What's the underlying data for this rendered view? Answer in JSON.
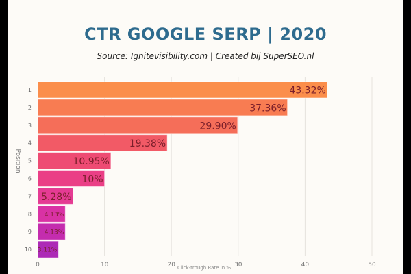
{
  "chart_data": {
    "type": "bar",
    "orientation": "horizontal",
    "title": "CTR GOOGLE SERP | 2020",
    "subtitle": "Source: Ignitevisibility.com  | Created bij SuperSEO.nl",
    "xlabel": "Click-trough Rate in %",
    "ylabel": "Position",
    "categories": [
      "1",
      "2",
      "3",
      "4",
      "5",
      "6",
      "7",
      "8",
      "9",
      "10"
    ],
    "values": [
      43.32,
      37.36,
      29.9,
      19.38,
      10.95,
      10,
      5.28,
      4.13,
      4.13,
      3.11
    ],
    "data_labels": [
      "43.32%",
      "37.36%",
      "29.90%",
      "19.38%",
      "10.95%",
      "10%",
      "5.28%",
      "4.13%",
      "4.13%",
      "3.11%"
    ],
    "xlim": [
      0,
      50
    ],
    "xticks": [
      "0",
      "10",
      "20",
      "30",
      "40",
      "50"
    ],
    "grid": true,
    "colors": [
      "#fb8e4b",
      "#f87c52",
      "#f56e59",
      "#f25a66",
      "#ee4b73",
      "#ea3f86",
      "#e53b93",
      "#d932a4",
      "#c42cae",
      "#ad2ab6"
    ],
    "label_color": "#7a1e2a",
    "title_color": "#2e6b8e"
  }
}
